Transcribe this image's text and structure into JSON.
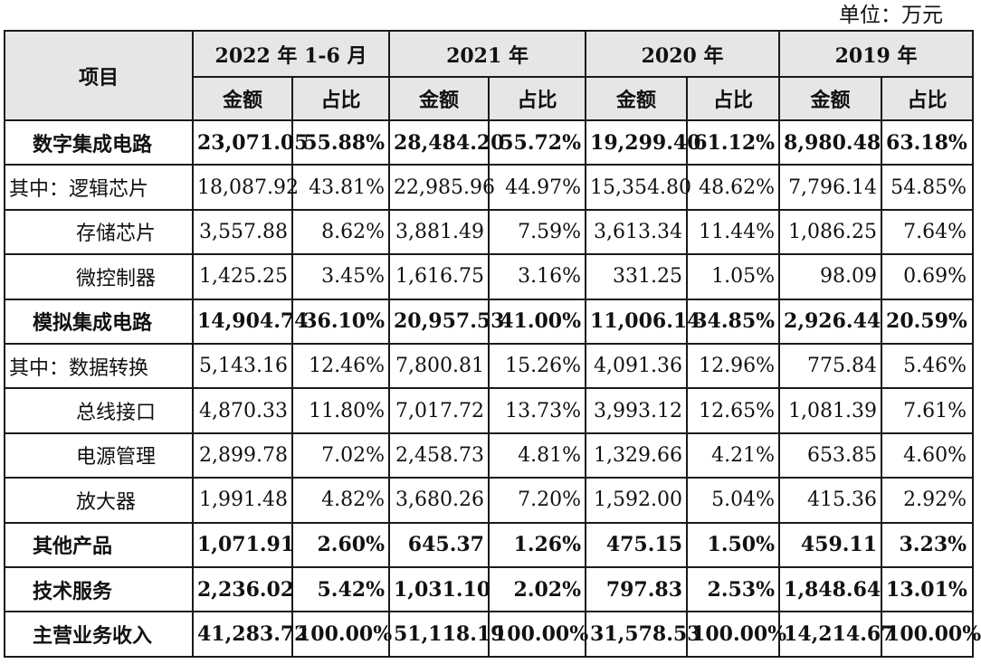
{
  "unit_label": "单位：万元",
  "header": {
    "item": "项目",
    "periods": [
      "2022 年 1-6 月",
      "2021 年",
      "2020 年",
      "2019 年"
    ],
    "amount": "金额",
    "ratio": "占比"
  },
  "rows": [
    {
      "label": "数字集成电路",
      "style": "bold",
      "values": [
        "23,071.05",
        "55.88%",
        "28,484.20",
        "55.72%",
        "19,299.40",
        "61.12%",
        "8,980.48",
        "63.18%"
      ]
    },
    {
      "label": "其中：逻辑芯片",
      "style": "qizhong",
      "values": [
        "18,087.92",
        "43.81%",
        "22,985.96",
        "44.97%",
        "15,354.80",
        "48.62%",
        "7,796.14",
        "54.85%"
      ]
    },
    {
      "label": "存储芯片",
      "style": "sub",
      "values": [
        "3,557.88",
        "8.62%",
        "3,881.49",
        "7.59%",
        "3,613.34",
        "11.44%",
        "1,086.25",
        "7.64%"
      ]
    },
    {
      "label": "微控制器",
      "style": "sub",
      "values": [
        "1,425.25",
        "3.45%",
        "1,616.75",
        "3.16%",
        "331.25",
        "1.05%",
        "98.09",
        "0.69%"
      ]
    },
    {
      "label": "模拟集成电路",
      "style": "bold",
      "values": [
        "14,904.74",
        "36.10%",
        "20,957.53",
        "41.00%",
        "11,006.14",
        "34.85%",
        "2,926.44",
        "20.59%"
      ]
    },
    {
      "label": "其中：数据转换",
      "style": "qizhong",
      "values": [
        "5,143.16",
        "12.46%",
        "7,800.81",
        "15.26%",
        "4,091.36",
        "12.96%",
        "775.84",
        "5.46%"
      ]
    },
    {
      "label": "总线接口",
      "style": "sub",
      "values": [
        "4,870.33",
        "11.80%",
        "7,017.72",
        "13.73%",
        "3,993.12",
        "12.65%",
        "1,081.39",
        "7.61%"
      ]
    },
    {
      "label": "电源管理",
      "style": "sub",
      "values": [
        "2,899.78",
        "7.02%",
        "2,458.73",
        "4.81%",
        "1,329.66",
        "4.21%",
        "653.85",
        "4.60%"
      ]
    },
    {
      "label": "放大器",
      "style": "sub",
      "values": [
        "1,991.48",
        "4.82%",
        "3,680.26",
        "7.20%",
        "1,592.00",
        "5.04%",
        "415.36",
        "2.92%"
      ]
    },
    {
      "label": "其他产品",
      "style": "bold",
      "values": [
        "1,071.91",
        "2.60%",
        "645.37",
        "1.26%",
        "475.15",
        "1.50%",
        "459.11",
        "3.23%"
      ]
    },
    {
      "label": "技术服务",
      "style": "bold",
      "values": [
        "2,236.02",
        "5.42%",
        "1,031.10",
        "2.02%",
        "797.83",
        "2.53%",
        "1,848.64",
        "13.01%"
      ]
    },
    {
      "label": "主营业务收入",
      "style": "total",
      "values": [
        "41,283.72",
        "100.00%",
        "51,118.19",
        "100.00%",
        "31,578.53",
        "100.00%",
        "14,214.67",
        "100.00%"
      ]
    }
  ]
}
